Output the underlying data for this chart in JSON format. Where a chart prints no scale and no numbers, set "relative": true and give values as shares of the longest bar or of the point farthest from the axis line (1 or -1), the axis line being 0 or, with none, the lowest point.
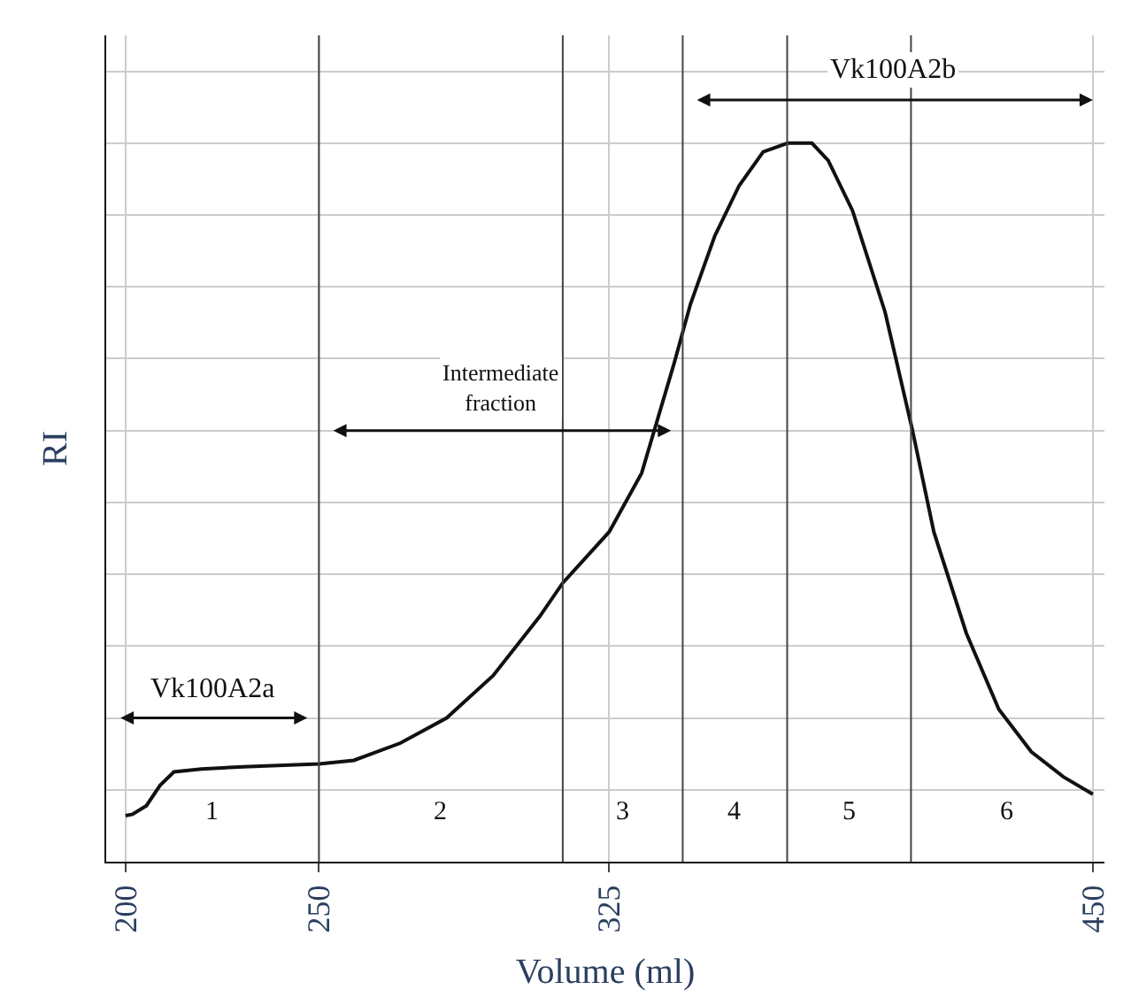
{
  "chart_data": {
    "type": "line",
    "relative": true,
    "xlabel": "Volume (ml)",
    "ylabel": "RI",
    "xlim": [
      195,
      453
    ],
    "xticks": [
      200,
      250,
      325,
      450
    ],
    "grid": true,
    "marker": "none",
    "line_style": "solid",
    "series": [
      {
        "color": "#111111",
        "x": [
          200,
          201.8,
          205.4,
          208.9,
          212.5,
          219.6,
          230.4,
          250,
          259,
          271,
          283,
          295,
          307,
          313,
          325,
          333.4,
          341.8,
          346,
          352.3,
          358.6,
          364.8,
          371.1,
          377.4,
          381.6,
          387.9,
          396.3,
          403.4,
          408.9,
          417.3,
          425.7,
          434.1,
          442.4,
          450
        ],
        "values": [
          0.064,
          0.066,
          0.078,
          0.106,
          0.125,
          0.129,
          0.132,
          0.136,
          0.141,
          0.165,
          0.2,
          0.259,
          0.341,
          0.388,
          0.459,
          0.541,
          0.694,
          0.776,
          0.871,
          0.941,
          0.988,
          1,
          1,
          0.976,
          0.906,
          0.765,
          0.6,
          0.459,
          0.318,
          0.212,
          0.153,
          0.118,
          0.094
        ]
      }
    ],
    "ref_lines": [
      {
        "axis": "x",
        "value": 250
      },
      {
        "axis": "x",
        "value": 313
      },
      {
        "axis": "x",
        "value": 344
      },
      {
        "axis": "x",
        "value": 371
      },
      {
        "axis": "x",
        "value": 403
      }
    ],
    "annotations": [
      "Vk100A2a",
      "Intermediate fraction",
      "Vk100A2b",
      "1",
      "2",
      "3",
      "4",
      "5",
      "6"
    ]
  }
}
